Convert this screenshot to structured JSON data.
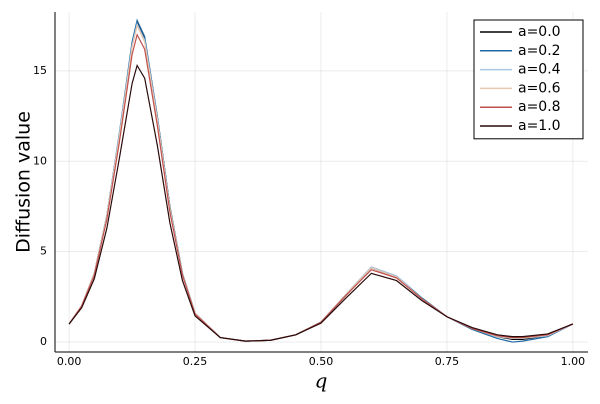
{
  "chart_data": {
    "type": "line",
    "xlabel": "q",
    "ylabel": "Diffusion value",
    "x": [
      0,
      0.025,
      0.05,
      0.075,
      0.1,
      0.125,
      0.135,
      0.15,
      0.175,
      0.2,
      0.225,
      0.25,
      0.3,
      0.35,
      0.4,
      0.45,
      0.5,
      0.55,
      0.6,
      0.65,
      0.7,
      0.75,
      0.8,
      0.85,
      0.88,
      0.9,
      0.95,
      1.0
    ],
    "series": [
      {
        "name": "a=0.0",
        "color": "#000000",
        "values": [
          1.0,
          2.0,
          3.8,
          7.0,
          11.5,
          16.5,
          17.7,
          16.8,
          12.5,
          7.5,
          3.8,
          1.6,
          0.25,
          0.05,
          0.1,
          0.4,
          1.1,
          2.6,
          4.1,
          3.6,
          2.4,
          1.4,
          0.75,
          0.3,
          0.15,
          0.15,
          0.35,
          1.0
        ]
      },
      {
        "name": "a=0.2",
        "color": "#1f6aa5",
        "values": [
          1.0,
          2.0,
          3.8,
          7.0,
          11.6,
          16.6,
          17.8,
          16.9,
          12.5,
          7.5,
          3.8,
          1.6,
          0.25,
          0.05,
          0.1,
          0.4,
          1.1,
          2.65,
          4.15,
          3.65,
          2.45,
          1.4,
          0.7,
          0.2,
          0.0,
          0.05,
          0.3,
          1.0
        ]
      },
      {
        "name": "a=0.4",
        "color": "#a9c6e3",
        "values": [
          1.0,
          2.0,
          3.8,
          7.0,
          11.5,
          16.4,
          17.6,
          16.7,
          12.4,
          7.4,
          3.8,
          1.6,
          0.25,
          0.05,
          0.1,
          0.4,
          1.1,
          2.65,
          4.15,
          3.65,
          2.4,
          1.4,
          0.75,
          0.3,
          0.2,
          0.2,
          0.35,
          1.0
        ]
      },
      {
        "name": "a=0.6",
        "color": "#e8c8b0",
        "values": [
          1.0,
          2.0,
          3.8,
          6.95,
          11.4,
          16.3,
          17.5,
          16.6,
          12.3,
          7.4,
          3.75,
          1.6,
          0.25,
          0.05,
          0.1,
          0.4,
          1.1,
          2.65,
          4.1,
          3.6,
          2.4,
          1.4,
          0.75,
          0.32,
          0.22,
          0.22,
          0.38,
          1.0
        ]
      },
      {
        "name": "a=0.8",
        "color": "#c0504d",
        "values": [
          1.0,
          2.0,
          3.7,
          6.8,
          11.1,
          15.9,
          17.0,
          16.2,
          12.0,
          7.2,
          3.7,
          1.55,
          0.25,
          0.05,
          0.1,
          0.4,
          1.1,
          2.6,
          4.0,
          3.55,
          2.4,
          1.4,
          0.75,
          0.35,
          0.25,
          0.25,
          0.4,
          1.0
        ]
      },
      {
        "name": "a=1.0",
        "color": "#2a0a0a",
        "values": [
          1.0,
          1.9,
          3.5,
          6.3,
          10.2,
          14.3,
          15.3,
          14.6,
          10.9,
          6.6,
          3.4,
          1.45,
          0.25,
          0.05,
          0.1,
          0.4,
          1.05,
          2.45,
          3.8,
          3.4,
          2.3,
          1.4,
          0.8,
          0.4,
          0.3,
          0.3,
          0.45,
          1.0
        ]
      }
    ],
    "xlim": [
      -0.028,
      1.03
    ],
    "ylim": [
      -0.55,
      18.26
    ],
    "xticks": [
      {
        "value": 0,
        "label": "0.00"
      },
      {
        "value": 0.25,
        "label": "0.25"
      },
      {
        "value": 0.5,
        "label": "0.50"
      },
      {
        "value": 0.75,
        "label": "0.75"
      },
      {
        "value": 1,
        "label": "1.00"
      }
    ],
    "yticks": [
      0,
      5,
      10,
      15
    ],
    "grid": true,
    "legend": "top-right"
  }
}
